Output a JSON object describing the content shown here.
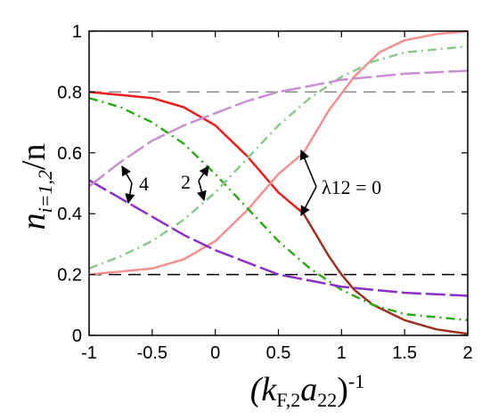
{
  "chart_data": {
    "type": "line",
    "xlabel": "(k_F,2 a_22)^-1",
    "ylabel": "n_i=1,2 / n",
    "xlim": [
      -1,
      2
    ],
    "ylim": [
      0,
      1
    ],
    "x_ticks": [
      "-1",
      "-0.5",
      "0",
      "0.5",
      "1",
      "1.5",
      "2"
    ],
    "y_ticks": [
      "0",
      "0.2",
      "0.4",
      "0.6",
      "0.8",
      "1"
    ],
    "x_tick_values": [
      -1,
      -0.5,
      0,
      0.5,
      1,
      1.5,
      2
    ],
    "y_tick_values": [
      0,
      0.2,
      0.4,
      0.6,
      0.8,
      1
    ],
    "axis_title_parts": {
      "y_main": "n",
      "y_sub": "i=1,2",
      "y_tail": "/n",
      "x_open": "(k",
      "x_sub1": "F,2",
      "x_mid": "a",
      "x_sub2": "22",
      "x_close": ")",
      "x_sup": "-1"
    },
    "annotations": [
      {
        "text": "4"
      },
      {
        "text": "2"
      },
      {
        "text": "λ12 = 0"
      }
    ],
    "reference_lines": [
      {
        "y": 0.8,
        "color": "#888888",
        "style": "dashed"
      },
      {
        "y": 0.2,
        "color": "#000000",
        "style": "dashed"
      }
    ],
    "series": [
      {
        "color": "#ee1c1c",
        "style": "solid",
        "x": [
          -1,
          -0.75,
          -0.5,
          -0.25,
          0,
          0.25,
          0.5,
          0.7
        ],
        "y": [
          0.8,
          0.79,
          0.78,
          0.75,
          0.69,
          0.59,
          0.47,
          0.4
        ]
      },
      {
        "color": "#9b3020",
        "style": "solid",
        "x": [
          0.7,
          0.9,
          1.0,
          1.1,
          1.25,
          1.5,
          1.75,
          2.0
        ],
        "y": [
          0.4,
          0.26,
          0.2,
          0.15,
          0.1,
          0.05,
          0.02,
          0.005
        ]
      },
      {
        "color": "#f49090",
        "style": "solid",
        "x": [
          -1,
          -0.75,
          -0.5,
          -0.25,
          0,
          0.25,
          0.5,
          0.7,
          0.9,
          1.1,
          1.3,
          1.5,
          1.75,
          2.0
        ],
        "y": [
          0.2,
          0.21,
          0.22,
          0.25,
          0.31,
          0.41,
          0.53,
          0.6,
          0.74,
          0.85,
          0.93,
          0.97,
          0.99,
          1.0
        ]
      },
      {
        "color": "#2faa1a",
        "style": "dashdot",
        "x": [
          -1,
          -0.75,
          -0.5,
          -0.25,
          0,
          0.25,
          0.5,
          0.75,
          1.0,
          1.25,
          1.5,
          1.75,
          2.0
        ],
        "y": [
          0.78,
          0.75,
          0.7,
          0.63,
          0.53,
          0.42,
          0.31,
          0.22,
          0.15,
          0.1,
          0.07,
          0.06,
          0.05
        ]
      },
      {
        "color": "#8bc88b",
        "style": "dashdot",
        "x": [
          -1,
          -0.75,
          -0.5,
          -0.25,
          0,
          0.25,
          0.5,
          0.75,
          1.0,
          1.25,
          1.5,
          1.75,
          2.0
        ],
        "y": [
          0.22,
          0.26,
          0.31,
          0.38,
          0.47,
          0.58,
          0.69,
          0.78,
          0.85,
          0.9,
          0.93,
          0.94,
          0.95
        ]
      },
      {
        "color": "#8b2fc9",
        "style": "longdash",
        "x": [
          -1,
          -0.75,
          -0.5,
          -0.25,
          0,
          0.25,
          0.5,
          0.75,
          1.0,
          1.25,
          1.5,
          1.75,
          2.0
        ],
        "y": [
          0.51,
          0.45,
          0.39,
          0.33,
          0.28,
          0.24,
          0.2,
          0.18,
          0.16,
          0.15,
          0.14,
          0.135,
          0.13
        ]
      },
      {
        "color": "#c98fd1",
        "style": "longdash",
        "x": [
          -1,
          -0.75,
          -0.5,
          -0.25,
          0,
          0.25,
          0.5,
          0.75,
          1.0,
          1.25,
          1.5,
          1.75,
          2.0
        ],
        "y": [
          0.49,
          0.57,
          0.64,
          0.69,
          0.73,
          0.77,
          0.8,
          0.82,
          0.84,
          0.85,
          0.86,
          0.865,
          0.87
        ]
      }
    ]
  }
}
